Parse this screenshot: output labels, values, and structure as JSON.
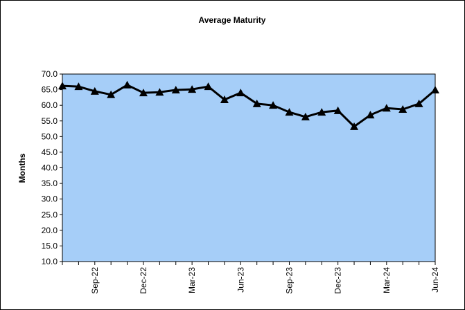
{
  "chart_data": {
    "type": "line",
    "title": "Average Maturity",
    "y_label": "Months",
    "categories": [
      null,
      null,
      "Sep-22",
      null,
      null,
      "Dec-22",
      null,
      null,
      "Mar-23",
      null,
      null,
      "Jun-23",
      null,
      null,
      "Sep-23",
      null,
      null,
      "Dec-23",
      null,
      null,
      "Mar-24",
      null,
      null,
      "Jun-24"
    ],
    "series": [
      {
        "name": "Average Maturity",
        "color": "#000000",
        "values": [
          66.2,
          66.0,
          64.5,
          63.4,
          66.5,
          64.0,
          64.2,
          64.9,
          65.1,
          66.0,
          61.8,
          64.0,
          60.5,
          60.0,
          57.8,
          56.3,
          57.8,
          58.3,
          53.2,
          56.9,
          59.1,
          58.7,
          60.5,
          64.9
        ]
      }
    ],
    "ylim": [
      10,
      70
    ],
    "yticks": [
      {
        "value": 10,
        "label": "10.0"
      },
      {
        "value": 15,
        "label": "15.0"
      },
      {
        "value": 20,
        "label": "20.0"
      },
      {
        "value": 25,
        "label": "25.0"
      },
      {
        "value": 30,
        "label": "30.0"
      },
      {
        "value": 35,
        "label": "35.0"
      },
      {
        "value": 40,
        "label": "40.0"
      },
      {
        "value": 45,
        "label": "45.0"
      },
      {
        "value": 50,
        "label": "50.0"
      },
      {
        "value": 55,
        "label": "55.0"
      },
      {
        "value": 60,
        "label": "60.0"
      },
      {
        "value": 65,
        "label": "65.0"
      },
      {
        "value": 70,
        "label": "70.0"
      }
    ],
    "plot_color": "#a6cef8",
    "grid": false
  }
}
